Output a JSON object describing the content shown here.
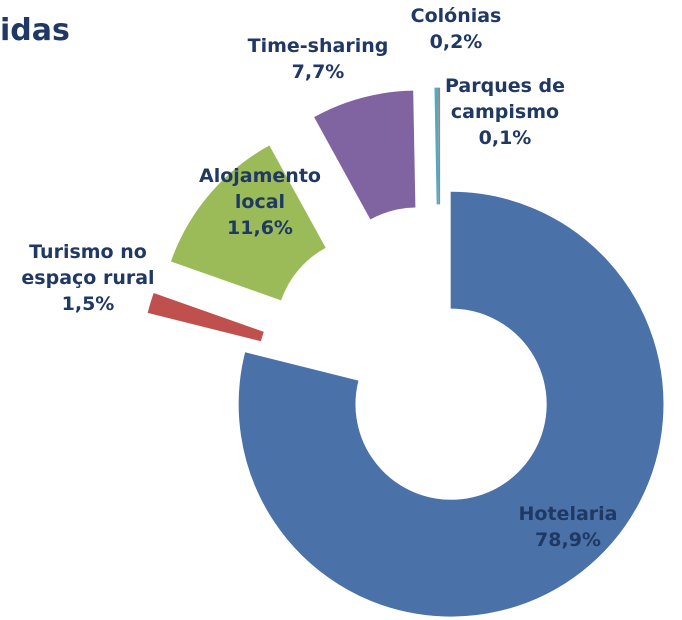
{
  "chart_data": {
    "type": "donut",
    "title": "idas",
    "categories": [
      "Hotelaria",
      "Turismo no\nespaço rural",
      "Alojamento\nlocal",
      "Time-sharing",
      "Colónias",
      "Parques de\ncampismo"
    ],
    "values": [
      78.9,
      1.5,
      11.6,
      7.7,
      0.2,
      0.1
    ],
    "value_labels": [
      "78,9%",
      "1,5%",
      "11,6%",
      "7,7%",
      "0,2%",
      "0,1%"
    ],
    "colors": [
      "#4a72a8",
      "#c0504d",
      "#9bbb59",
      "#8064a2",
      "#4bacc6",
      "#8c8c8c"
    ]
  }
}
